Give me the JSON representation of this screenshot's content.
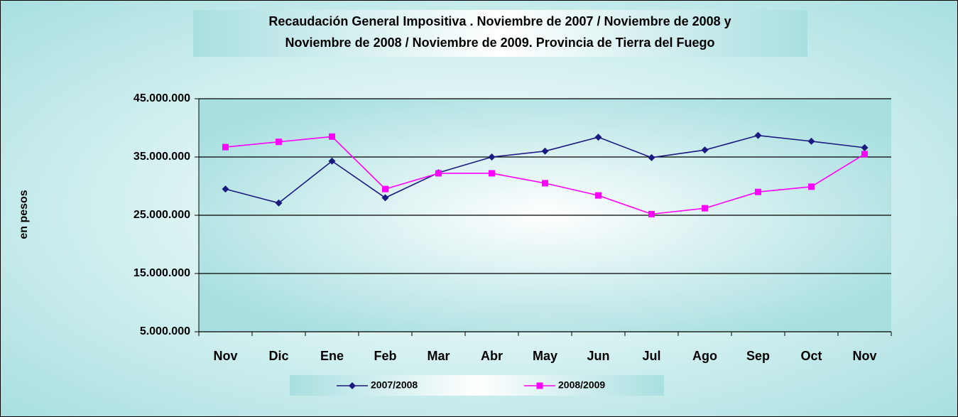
{
  "chart_data": {
    "type": "line",
    "title": [
      "Recaudación General Impositiva . Noviembre de  2007 / Noviembre de 2008 y",
      "Noviembre de 2008 / Noviembre de 2009. Provincia de Tierra del Fuego"
    ],
    "y_label": "en pesos",
    "categories": [
      "Nov",
      "Dic",
      "Ene",
      "Feb",
      "Mar",
      "Abr",
      "May",
      "Jun",
      "Jul",
      "Ago",
      "Sep",
      "Oct",
      "Nov"
    ],
    "series": [
      {
        "name": "2007/2008",
        "color": "#1a1a80",
        "marker": "diamond",
        "values": [
          29500000,
          27100000,
          34300000,
          28000000,
          32300000,
          35000000,
          36000000,
          38400000,
          34900000,
          36200000,
          38700000,
          37700000,
          36600000
        ]
      },
      {
        "name": "2008/2009",
        "color": "#ff00ff",
        "marker": "square",
        "values": [
          36700000,
          37600000,
          38500000,
          29500000,
          32200000,
          32200000,
          30500000,
          28400000,
          25200000,
          26200000,
          29000000,
          29900000,
          35500000
        ]
      }
    ],
    "ylim": [
      5000000,
      45000000
    ],
    "yticks": [
      {
        "value": 5000000,
        "label": "5.000.000"
      },
      {
        "value": 15000000,
        "label": "15.000.000"
      },
      {
        "value": 25000000,
        "label": "25.000.000"
      },
      {
        "value": 35000000,
        "label": "35.000.000"
      },
      {
        "value": 45000000,
        "label": "45.000.000"
      }
    ],
    "grid": true,
    "legend": "bottom"
  }
}
